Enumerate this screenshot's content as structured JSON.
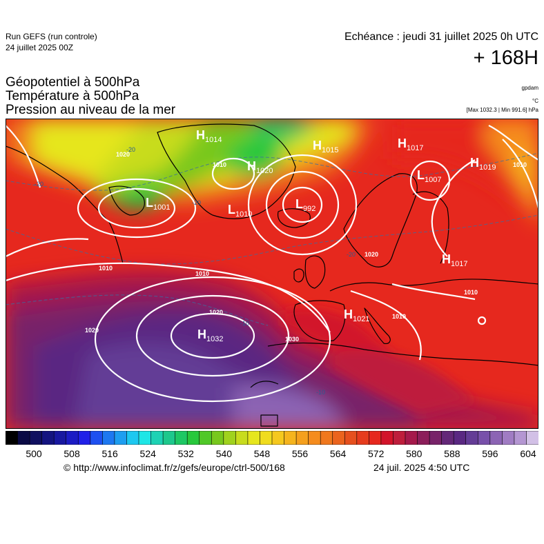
{
  "header": {
    "run_label": "Run GEFS (run controle)",
    "run_date": "24 juillet 2025 00Z",
    "valid_time": "Echéance : jeudi 31 juillet 2025 0h UTC",
    "lead_time": "+ 168H"
  },
  "titles": {
    "line1": "Géopotentiel à 500hPa",
    "line2": "Température à 500hPa",
    "line3": "Pression au niveau de la mer"
  },
  "units": {
    "geopotential": "gpdam",
    "temperature": "°C",
    "pressure_range": "[Max 1032.3 | Min 991.6] hPa"
  },
  "pressure_centers": [
    {
      "type": "H",
      "value": "1014"
    },
    {
      "type": "H",
      "value": "1020"
    },
    {
      "type": "H",
      "value": "1015"
    },
    {
      "type": "H",
      "value": "1017"
    },
    {
      "type": "H",
      "value": "1019"
    },
    {
      "type": "L",
      "value": "1001"
    },
    {
      "type": "L",
      "value": "1010"
    },
    {
      "type": "L",
      "value": "992"
    },
    {
      "type": "L",
      "value": "1007"
    },
    {
      "type": "H",
      "value": "1017"
    },
    {
      "type": "H",
      "value": "1021"
    },
    {
      "type": "H",
      "value": "1032"
    }
  ],
  "isobar_labels": [
    "1020",
    "1020",
    "1010",
    "1020",
    "1030",
    "1020",
    "1010",
    "1010",
    "1010",
    "1010",
    "1010"
  ],
  "isotherm_labels": [
    "-20",
    "-20",
    "-20",
    "-20",
    "-10",
    "-10"
  ],
  "colorbar": {
    "tick_labels": [
      "500",
      "508",
      "516",
      "524",
      "532",
      "540",
      "548",
      "556",
      "564",
      "572",
      "580",
      "588",
      "596",
      "604"
    ],
    "colors": [
      "#000000",
      "#0a0a44",
      "#101060",
      "#141480",
      "#1818a0",
      "#1c1cc4",
      "#2020e8",
      "#1e50f0",
      "#1e78f0",
      "#1e9ef0",
      "#1ec8f0",
      "#1ee6e6",
      "#1ed2b4",
      "#1ec88c",
      "#1ec864",
      "#28c83c",
      "#50c828",
      "#78c81e",
      "#a0d21e",
      "#c8dc1e",
      "#e6e61e",
      "#f0dc1e",
      "#f5c81e",
      "#f5b41e",
      "#f5a01e",
      "#f58c1e",
      "#f0781e",
      "#eb641e",
      "#e6501e",
      "#e63c1e",
      "#e6281e",
      "#d2142a",
      "#be1e3c",
      "#a5194b",
      "#8c1e5a",
      "#782369",
      "#642878",
      "#5a2882",
      "#643c96",
      "#7850aa",
      "#8c64b4",
      "#a07cc3",
      "#b496d2",
      "#d2c0e6"
    ]
  },
  "footer": {
    "credit": "© http://www.infoclimat.fr/z/gefs/europe/ctrl-500/168",
    "issued": "24 juil. 2025  4:50 UTC"
  }
}
